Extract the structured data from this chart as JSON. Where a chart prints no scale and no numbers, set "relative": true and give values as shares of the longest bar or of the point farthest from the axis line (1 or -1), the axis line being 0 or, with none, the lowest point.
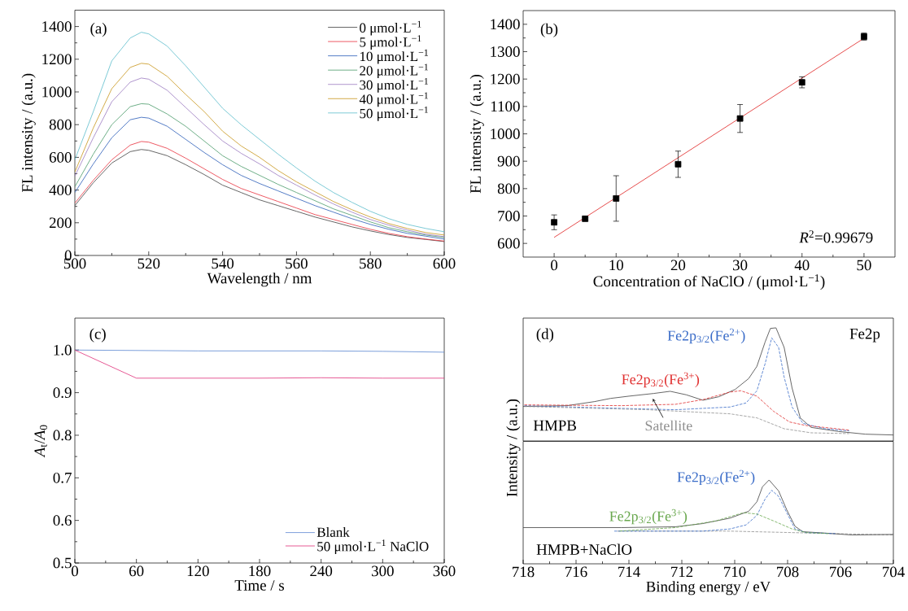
{
  "chart_data": [
    {
      "type": "line",
      "x": [
        500,
        505,
        510,
        515,
        518,
        520,
        525,
        530,
        535,
        540,
        545,
        550,
        555,
        560,
        565,
        570,
        575,
        580,
        585,
        590,
        595,
        600
      ],
      "xlabel": "Wavelength / nm",
      "ylabel": "FL intensity / (a.u.)",
      "annotations": [
        "(a)"
      ],
      "xlim": [
        500,
        600
      ],
      "ylim": [
        0,
        1500
      ],
      "xticks": [
        500,
        520,
        540,
        560,
        580,
        600
      ],
      "yticks": [
        0,
        200,
        400,
        600,
        800,
        1000,
        1200,
        1400
      ],
      "legend": "top right",
      "series": [
        {
          "name": "0 μmol·L$^{−1}$",
          "color": "#404040",
          "values": [
            305,
            445,
            565,
            635,
            648,
            643,
            610,
            555,
            495,
            430,
            385,
            340,
            305,
            270,
            235,
            205,
            175,
            150,
            128,
            110,
            98,
            85
          ]
        },
        {
          "name": "5 μmol·L$^{−1}$",
          "color": "#e8303c",
          "values": [
            320,
            460,
            585,
            675,
            697,
            693,
            655,
            595,
            530,
            465,
            410,
            370,
            330,
            290,
            250,
            220,
            190,
            160,
            135,
            115,
            100,
            88
          ]
        },
        {
          "name": "10 μmol·L$^{−1}$",
          "color": "#2a5cb8",
          "values": [
            385,
            560,
            720,
            830,
            845,
            840,
            790,
            710,
            630,
            555,
            490,
            440,
            395,
            350,
            305,
            265,
            225,
            190,
            160,
            135,
            118,
            100
          ]
        },
        {
          "name": "20 μmol·L$^{−1}$",
          "color": "#4a9a6a",
          "values": [
            420,
            620,
            800,
            910,
            928,
            925,
            865,
            790,
            700,
            610,
            545,
            490,
            435,
            385,
            335,
            285,
            245,
            205,
            170,
            145,
            125,
            110
          ]
        },
        {
          "name": "30 μmol·L$^{−1}$",
          "color": "#9a7ac0",
          "values": [
            485,
            720,
            940,
            1060,
            1085,
            1078,
            1010,
            905,
            800,
            700,
            625,
            560,
            490,
            430,
            370,
            315,
            265,
            220,
            185,
            155,
            130,
            115
          ]
        },
        {
          "name": "40 μmol·L$^{−1}$",
          "color": "#c8961a",
          "values": [
            510,
            780,
            1020,
            1150,
            1175,
            1170,
            1095,
            985,
            880,
            760,
            670,
            600,
            520,
            450,
            390,
            330,
            280,
            235,
            195,
            165,
            140,
            125
          ]
        },
        {
          "name": "50 μmol·L$^{−1}$",
          "color": "#5cbccc",
          "values": [
            585,
            880,
            1190,
            1330,
            1365,
            1355,
            1280,
            1160,
            1030,
            900,
            800,
            710,
            620,
            535,
            455,
            385,
            325,
            270,
            225,
            190,
            165,
            145
          ]
        }
      ]
    },
    {
      "type": "scatter",
      "xlabel": "Concentration of NaClO / (μmol·L$^{−1}$)",
      "ylabel": "FL intensity / (a.u.)",
      "annotations": [
        "(b)",
        "*R*$^{2}$=0.99679"
      ],
      "xlim": [
        -5,
        55
      ],
      "ylim": [
        550,
        1450
      ],
      "xticks": [
        0,
        10,
        20,
        30,
        40,
        50
      ],
      "yticks": [
        600,
        700,
        800,
        900,
        1000,
        1100,
        1200,
        1300,
        1400
      ],
      "series": [
        {
          "type": "scatter",
          "marker": "square",
          "color": "#000000",
          "x": [
            0,
            5,
            10,
            20,
            30,
            40,
            50
          ],
          "values": [
            677,
            690,
            764,
            889,
            1056,
            1188,
            1355
          ],
          "errors": [
            27,
            5,
            83,
            48,
            51,
            20,
            13
          ]
        },
        {
          "type": "line",
          "marker": "none",
          "color": "#e02020",
          "x": [
            0,
            50
          ],
          "values": [
            622,
            1349
          ]
        }
      ]
    },
    {
      "type": "line",
      "x": [
        0,
        60,
        120,
        180,
        240,
        300,
        360
      ],
      "xlabel": "Time / s",
      "ylabel": "*A*$_{t}$/*A*$_{0}$",
      "annotations": [
        "(c)"
      ],
      "xlim": [
        0,
        360
      ],
      "ylim": [
        0.5,
        1.075
      ],
      "xticks": [
        0,
        60,
        120,
        180,
        240,
        300,
        360
      ],
      "yticks": [
        0.5,
        0.6,
        0.7,
        0.8,
        0.9,
        {
          "value": 1,
          "label": "1.0"
        }
      ],
      "legend": "bottom right",
      "series": [
        {
          "name": "Blank",
          "color": "#5a86d0",
          "values": [
            1.0,
            0.999,
            0.998,
            0.998,
            0.998,
            0.997,
            0.995
          ]
        },
        {
          "name": "50 μmol·L$^{−1}$ NaClO",
          "color": "#e0307a",
          "values": [
            1.0,
            0.934,
            0.934,
            0.934,
            0.935,
            0.934,
            0.934
          ]
        }
      ]
    },
    {
      "type": "line",
      "relative": true,
      "xlim": [
        718,
        704
      ],
      "tick_labels": false,
      "annotations": [
        "(d)",
        "Fe2p",
        "HMPB"
      ],
      "series": [
        {
          "color": "#404040",
          "x": [
            718,
            716.34,
            715.3,
            714.7,
            714.0,
            713.06,
            712.44,
            711.83,
            711.2,
            710.6,
            709.98,
            709.47,
            709.16,
            708.85,
            708.65,
            708.44,
            708.13,
            707.83,
            707.52,
            707.11,
            706.08,
            705.06,
            704
          ],
          "values": [
            0.305,
            0.312,
            0.348,
            0.376,
            0.396,
            0.42,
            0.439,
            0.408,
            0.36,
            0.391,
            0.456,
            0.552,
            0.66,
            0.875,
            0.995,
            1.0,
            0.827,
            0.468,
            0.204,
            0.12,
            0.084,
            0.06,
            0.053
          ]
        },
        {
          "name": "Fe2p$_{3/2}$(Fe$^{2+}$)",
          "color": "#3a6cc8",
          "line_style": "dashed",
          "x": [
            718,
            714.29,
            712.24,
            710.18,
            709.57,
            709.16,
            708.85,
            708.6,
            708.34,
            708.13,
            707.83,
            707.42,
            706.6,
            705.67
          ],
          "values": [
            0.312,
            0.288,
            0.276,
            0.3,
            0.336,
            0.444,
            0.683,
            0.911,
            0.827,
            0.564,
            0.3,
            0.156,
            0.108,
            0.089
          ]
        },
        {
          "name": "Fe2p$_{3/2}$(Fe$^{3+}$)",
          "color": "#e03030",
          "line_style": "dashed",
          "x": [
            718,
            714.29,
            712.24,
            711.21,
            710.18,
            709.77,
            709.16,
            708.54,
            707.93,
            707.31,
            705.67
          ],
          "values": [
            0.319,
            0.312,
            0.324,
            0.365,
            0.432,
            0.444,
            0.396,
            0.264,
            0.168,
            0.137,
            0.096
          ]
        },
        {
          "name": "Satellite",
          "color": "#909090",
          "line_style": "dashed",
          "x": [
            718,
            713.26,
            710.18,
            709.16,
            708.13,
            707.11,
            705.67
          ],
          "values": [
            0.305,
            0.276,
            0.24,
            0.204,
            0.108,
            0.072,
            0.065
          ]
        }
      ]
    },
    {
      "type": "line",
      "relative": true,
      "xlim": [
        718,
        704
      ],
      "xticks": [
        718,
        716,
        714,
        712,
        710,
        708,
        706,
        704
      ],
      "tick_labels": "x",
      "xlabel": "Binding energy / eV",
      "ylabel": "Intensity / (a.u.)",
      "annotations": [
        "HMPB+NaClO"
      ],
      "series": [
        {
          "color": "#404040",
          "x": [
            718,
            714.29,
            712.24,
            711.21,
            710.18,
            709.47,
            709.16,
            708.95,
            708.7,
            708.34,
            708.03,
            707.72,
            707.42,
            706.6,
            705.57,
            704
          ],
          "values": [
            0.432,
            0.432,
            0.442,
            0.48,
            0.545,
            0.627,
            0.74,
            0.919,
            1.0,
            0.87,
            0.643,
            0.448,
            0.383,
            0.367,
            0.344,
            0.351
          ]
        },
        {
          "name": "Fe2p$_{3/2}$(Fe$^{2+}$)",
          "color": "#3a6cc8",
          "line_style": "dashed",
          "x": [
            714.6,
            711.21,
            710.18,
            709.57,
            709.16,
            708.85,
            708.6,
            708.34,
            708.03,
            707.72,
            707.31,
            706.2
          ],
          "values": [
            0.39,
            0.39,
            0.416,
            0.464,
            0.578,
            0.773,
            0.877,
            0.805,
            0.61,
            0.416,
            0.373,
            0.36
          ]
        },
        {
          "name": "Fe2p$_{3/2}$(Fe$^{3+}$)",
          "color": "#6aa84f",
          "line_style": "dashed",
          "x": [
            714.4,
            712.24,
            710.7,
            709.67,
            709.16,
            708.54,
            707.83,
            707.31,
            706.45
          ],
          "values": [
            0.39,
            0.432,
            0.513,
            0.61,
            0.594,
            0.513,
            0.416,
            0.373,
            0.36
          ]
        },
        {
          "color": "#909090",
          "line_style": "dashed",
          "x": [
            714.49,
            710.18,
            707.11,
            704
          ],
          "values": [
            0.39,
            0.39,
            0.367,
            0.344
          ]
        }
      ]
    }
  ]
}
